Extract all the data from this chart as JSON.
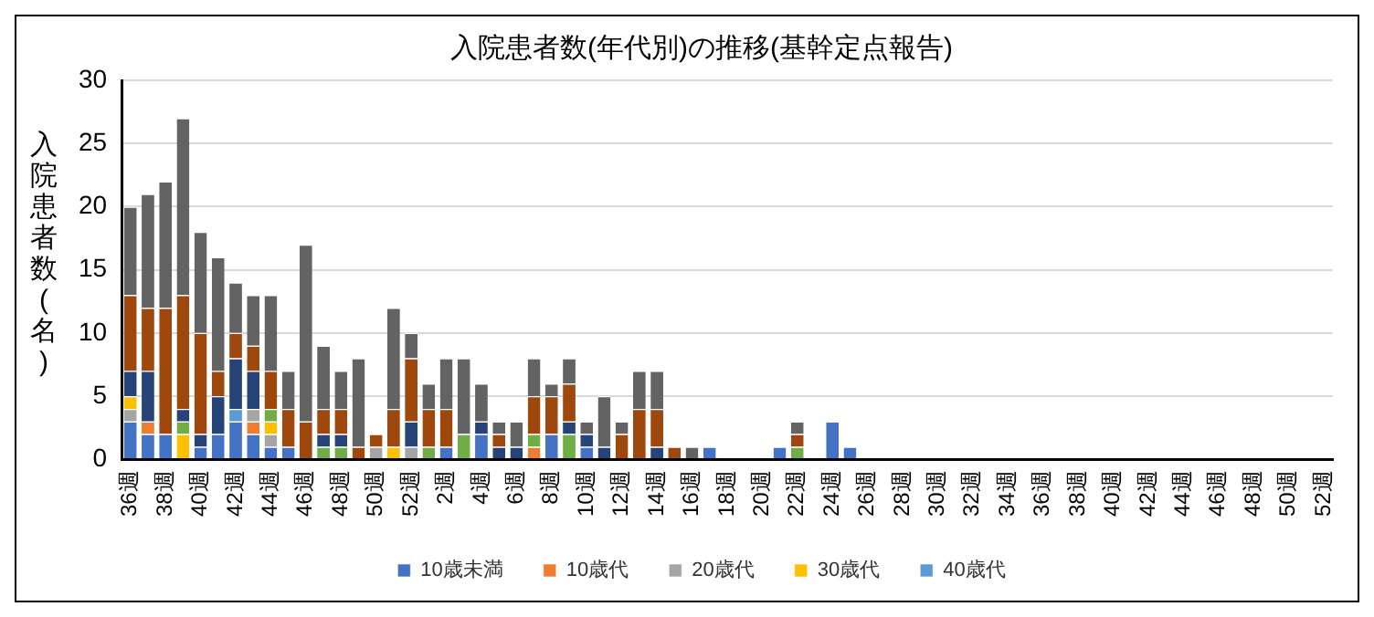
{
  "chart_data": {
    "type": "bar",
    "title": "入院患者数(年代別)の推移(基幹定点報告)",
    "ylabel": "入院患者数(名)",
    "stacked": true,
    "grid": "y",
    "legend": "bottom",
    "ylim": [
      0,
      30
    ],
    "yticks": [
      0,
      5,
      10,
      15,
      20,
      25,
      30
    ],
    "categories": [
      "36週",
      null,
      "38週",
      null,
      "40週",
      null,
      "42週",
      null,
      "44週",
      null,
      "46週",
      null,
      "48週",
      null,
      "50週",
      null,
      "52週",
      null,
      "2週",
      null,
      "4週",
      null,
      "6週",
      null,
      "8週",
      null,
      "10週",
      null,
      "12週",
      null,
      "14週",
      null,
      "16週",
      null,
      "18週",
      null,
      "20週",
      null,
      "22週",
      null,
      "24週",
      null,
      "26週",
      null,
      "28週",
      null,
      "30週",
      null,
      "32週",
      null,
      "34週",
      null,
      "36週",
      null,
      "38週",
      null,
      "40週",
      null,
      "42週",
      null,
      "44週",
      null,
      "46週",
      null,
      "48週",
      null,
      "50週",
      null,
      "52週"
    ],
    "series": [
      {
        "name": "10歳未満",
        "color": "#4472c4",
        "values": [
          3,
          2,
          2,
          0,
          1,
          2,
          3,
          2,
          1,
          1,
          0,
          0,
          0,
          0,
          0,
          0,
          0,
          0,
          1,
          0,
          2,
          0,
          0,
          0,
          2,
          0,
          1,
          0,
          0,
          0,
          0,
          0,
          0,
          1,
          0,
          0,
          0,
          1,
          0,
          0,
          3,
          1,
          0,
          0,
          0,
          0,
          0,
          0,
          0,
          0,
          0,
          0,
          0,
          0,
          0,
          0,
          0,
          0,
          0,
          0,
          0,
          0,
          0,
          0,
          0,
          0,
          0,
          0,
          0
        ]
      },
      {
        "name": "10歳代",
        "color": "#ed7d31",
        "values": [
          0,
          1,
          0,
          0,
          0,
          0,
          0,
          1,
          0,
          0,
          0,
          0,
          0,
          0,
          0,
          0,
          0,
          0,
          0,
          0,
          0,
          0,
          0,
          1,
          0,
          0,
          0,
          0,
          0,
          0,
          0,
          0,
          0,
          0,
          0,
          0,
          0,
          0,
          0,
          0,
          0,
          0,
          0,
          0,
          0,
          0,
          0,
          0,
          0,
          0,
          0,
          0,
          0,
          0,
          0,
          0,
          0,
          0,
          0,
          0,
          0,
          0,
          0,
          0,
          0,
          0,
          0,
          0,
          0
        ]
      },
      {
        "name": "20歳代",
        "color": "#a5a5a5",
        "values": [
          1,
          0,
          0,
          0,
          0,
          0,
          0,
          1,
          1,
          0,
          0,
          0,
          0,
          0,
          1,
          0,
          1,
          0,
          0,
          0,
          0,
          0,
          0,
          0,
          0,
          0,
          0,
          0,
          0,
          0,
          0,
          0,
          0,
          0,
          0,
          0,
          0,
          0,
          0,
          0,
          0,
          0,
          0,
          0,
          0,
          0,
          0,
          0,
          0,
          0,
          0,
          0,
          0,
          0,
          0,
          0,
          0,
          0,
          0,
          0,
          0,
          0,
          0,
          0,
          0,
          0,
          0,
          0,
          0
        ]
      },
      {
        "name": "30歳代",
        "color": "#ffc000",
        "values": [
          1,
          0,
          0,
          2,
          0,
          0,
          0,
          0,
          1,
          0,
          0,
          0,
          0,
          0,
          0,
          1,
          0,
          0,
          0,
          0,
          0,
          0,
          0,
          0,
          0,
          0,
          0,
          0,
          0,
          0,
          0,
          0,
          0,
          0,
          0,
          0,
          0,
          0,
          0,
          0,
          0,
          0,
          0,
          0,
          0,
          0,
          0,
          0,
          0,
          0,
          0,
          0,
          0,
          0,
          0,
          0,
          0,
          0,
          0,
          0,
          0,
          0,
          0,
          0,
          0,
          0,
          0,
          0,
          0
        ]
      },
      {
        "name": "40歳代",
        "color": "#5b9bd5",
        "values": [
          0,
          0,
          0,
          0,
          0,
          0,
          1,
          0,
          0,
          0,
          0,
          0,
          0,
          0,
          0,
          0,
          0,
          0,
          0,
          0,
          0,
          0,
          0,
          0,
          0,
          0,
          0,
          0,
          0,
          0,
          0,
          0,
          0,
          0,
          0,
          0,
          0,
          0,
          0,
          0,
          0,
          0,
          0,
          0,
          0,
          0,
          0,
          0,
          0,
          0,
          0,
          0,
          0,
          0,
          0,
          0,
          0,
          0,
          0,
          0,
          0,
          0,
          0,
          0,
          0,
          0,
          0,
          0,
          0
        ]
      },
      {
        "color": "#70ad47",
        "values": [
          0,
          0,
          0,
          1,
          0,
          0,
          0,
          0,
          1,
          0,
          0,
          1,
          1,
          0,
          0,
          0,
          0,
          1,
          0,
          2,
          0,
          0,
          0,
          1,
          0,
          2,
          0,
          0,
          0,
          0,
          0,
          0,
          0,
          0,
          0,
          0,
          0,
          0,
          1,
          0,
          0,
          0,
          0,
          0,
          0,
          0,
          0,
          0,
          0,
          0,
          0,
          0,
          0,
          0,
          0,
          0,
          0,
          0,
          0,
          0,
          0,
          0,
          0,
          0,
          0,
          0,
          0,
          0,
          0
        ]
      },
      {
        "color": "#264478",
        "values": [
          2,
          4,
          0,
          1,
          1,
          3,
          4,
          3,
          0,
          0,
          0,
          1,
          1,
          0,
          0,
          0,
          2,
          0,
          0,
          0,
          1,
          1,
          1,
          0,
          0,
          1,
          1,
          1,
          0,
          0,
          1,
          0,
          0,
          0,
          0,
          0,
          0,
          0,
          0,
          0,
          0,
          0,
          0,
          0,
          0,
          0,
          0,
          0,
          0,
          0,
          0,
          0,
          0,
          0,
          0,
          0,
          0,
          0,
          0,
          0,
          0,
          0,
          0,
          0,
          0,
          0,
          0,
          0,
          0
        ]
      },
      {
        "color": "#9e480e",
        "values": [
          6,
          5,
          10,
          9,
          8,
          2,
          2,
          2,
          3,
          3,
          3,
          2,
          2,
          1,
          1,
          3,
          5,
          3,
          3,
          0,
          0,
          1,
          0,
          3,
          3,
          3,
          0,
          0,
          2,
          4,
          3,
          1,
          0,
          0,
          0,
          0,
          0,
          0,
          1,
          0,
          0,
          0,
          0,
          0,
          0,
          0,
          0,
          0,
          0,
          0,
          0,
          0,
          0,
          0,
          0,
          0,
          0,
          0,
          0,
          0,
          0,
          0,
          0,
          0,
          0,
          0,
          0,
          0,
          0
        ]
      },
      {
        "color": "#636363",
        "values": [
          7,
          9,
          10,
          14,
          8,
          9,
          4,
          4,
          6,
          3,
          14,
          5,
          3,
          7,
          0,
          8,
          2,
          2,
          4,
          6,
          3,
          1,
          2,
          3,
          1,
          2,
          1,
          4,
          1,
          3,
          3,
          0,
          1,
          0,
          0,
          0,
          0,
          0,
          1,
          0,
          0,
          0,
          0,
          0,
          0,
          0,
          0,
          0,
          0,
          0,
          0,
          0,
          0,
          0,
          0,
          0,
          0,
          0,
          0,
          0,
          0,
          0,
          0,
          0,
          0,
          0,
          0,
          0,
          0
        ]
      }
    ]
  }
}
